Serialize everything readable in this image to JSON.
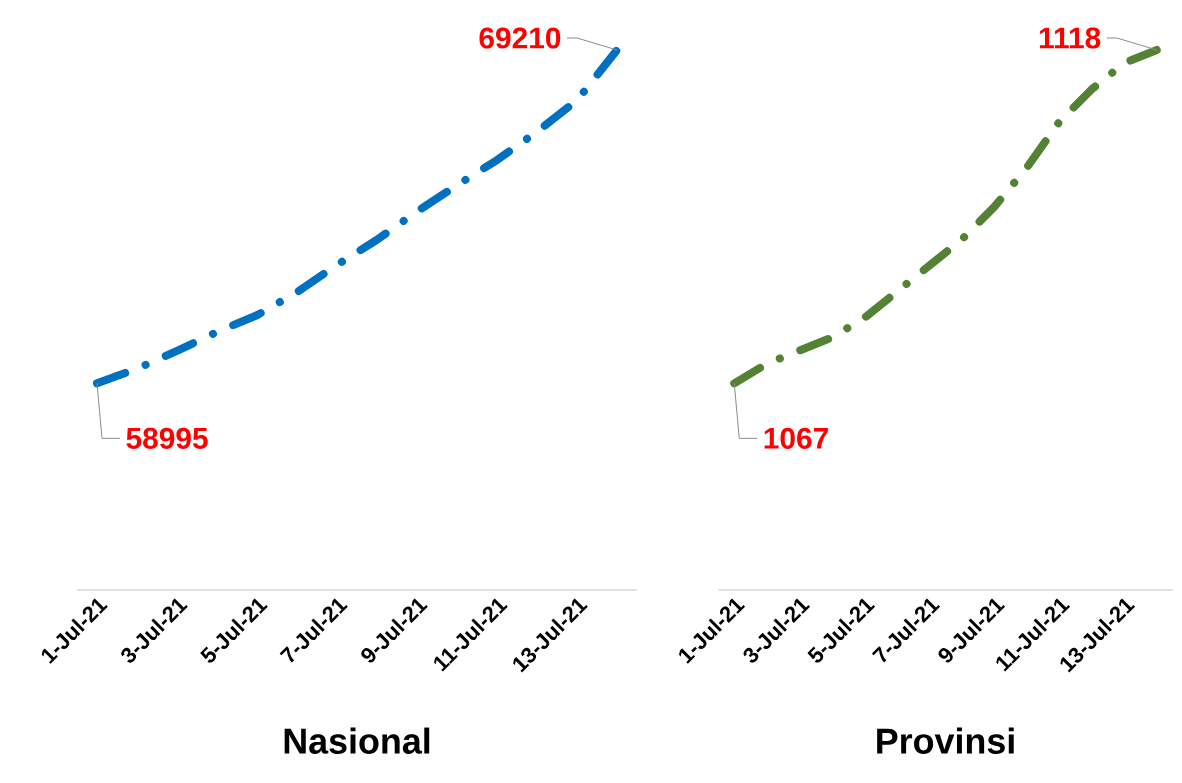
{
  "chart_data": [
    {
      "type": "line",
      "title": "Nasional",
      "categories": [
        "1-Jul-21",
        null,
        "3-Jul-21",
        null,
        "5-Jul-21",
        null,
        "7-Jul-21",
        null,
        "9-Jul-21",
        null,
        "11-Jul-21",
        null,
        "13-Jul-21",
        null
      ],
      "values": [
        58995,
        59445,
        59991,
        60569,
        61083,
        61789,
        62625,
        63395,
        64263,
        65066,
        65837,
        66704,
        67667,
        69210
      ],
      "value_labels": [
        "58995",
        null,
        null,
        null,
        null,
        null,
        null,
        null,
        null,
        null,
        null,
        null,
        null,
        "69210"
      ],
      "color": "#0070c0",
      "line_style": "dashed",
      "marker": "none"
    },
    {
      "type": "line",
      "title": "Provinsi",
      "categories": [
        "1-Jul-21",
        null,
        "3-Jul-21",
        null,
        "5-Jul-21",
        null,
        "7-Jul-21",
        null,
        "9-Jul-21",
        null,
        "11-Jul-21",
        null,
        "13-Jul-21",
        null
      ],
      "values": [
        1067,
        1070,
        1072,
        1074,
        1077,
        1081,
        1085,
        1089,
        1094,
        1100,
        1107,
        1112,
        1116,
        1118
      ],
      "value_labels": [
        "1067",
        null,
        null,
        null,
        null,
        null,
        null,
        null,
        null,
        null,
        null,
        null,
        null,
        "1118"
      ],
      "color": "#548235",
      "line_style": "dashed",
      "marker": "none"
    }
  ]
}
